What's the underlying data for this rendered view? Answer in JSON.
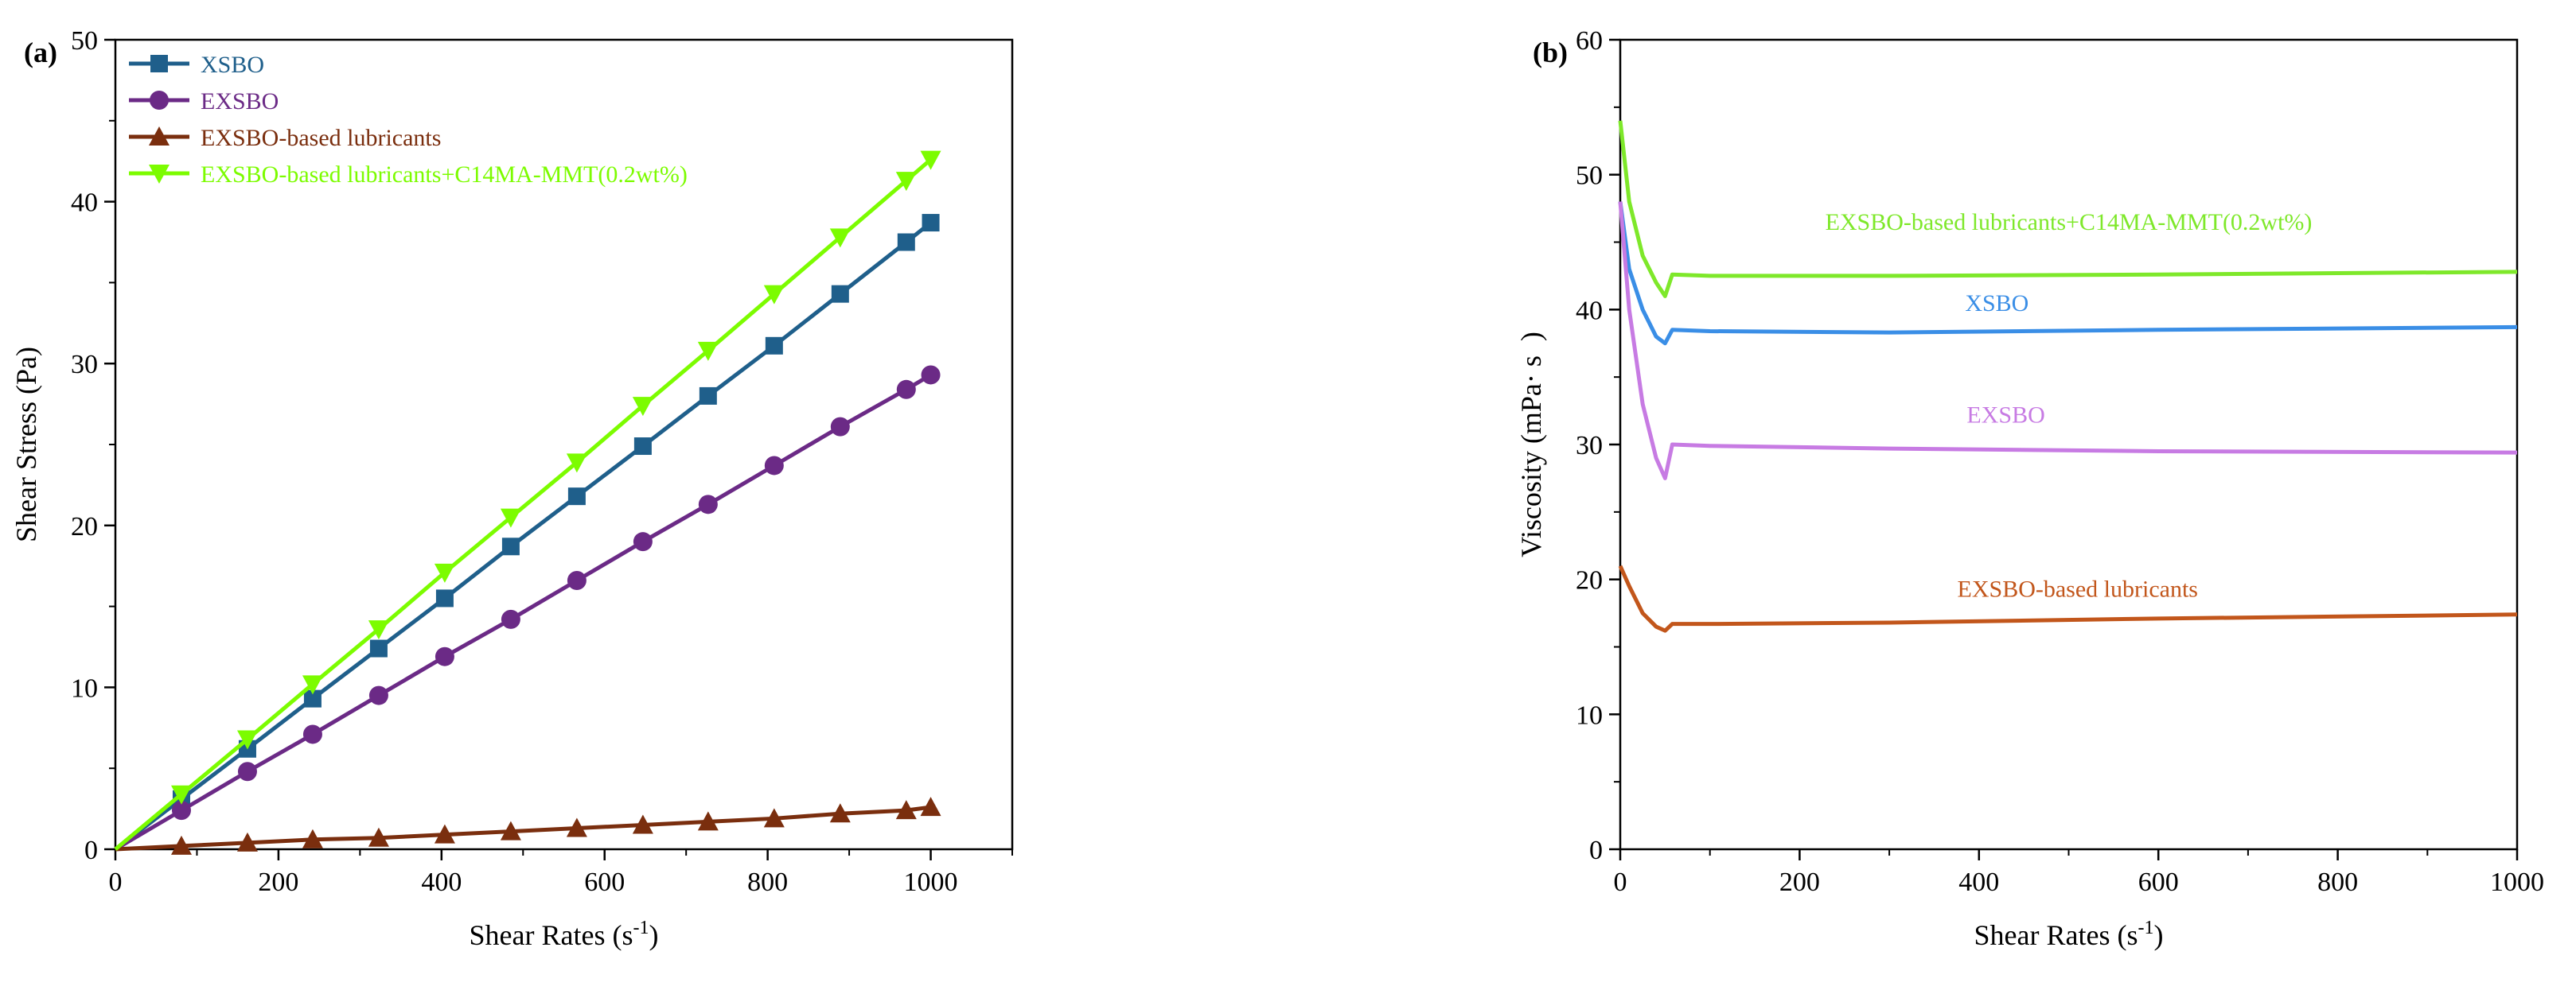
{
  "chart_data": [
    {
      "panel_label": "(a)",
      "type": "line",
      "xlabel": "Shear Rates (s",
      "xlabel_sup": "-1",
      "xlabel_close": ")",
      "ylabel": "Shear Stress (Pa)",
      "xlim": [
        0,
        1100
      ],
      "ylim": [
        0,
        50
      ],
      "xticks": [
        0,
        200,
        400,
        600,
        800,
        1000
      ],
      "yticks": [
        0,
        10,
        20,
        30,
        40,
        50
      ],
      "x": [
        0,
        81,
        162,
        242,
        323,
        404,
        485,
        566,
        647,
        727,
        808,
        889,
        970,
        1000
      ],
      "legend_position": "top-left",
      "series": [
        {
          "name": "XSBO",
          "color": "#1f5f8b",
          "marker": "square",
          "values": [
            0,
            3.1,
            6.2,
            9.3,
            12.4,
            15.5,
            18.7,
            21.8,
            24.9,
            28.0,
            31.1,
            34.3,
            37.5,
            38.7
          ]
        },
        {
          "name": "EXSBO",
          "color": "#6b2a86",
          "marker": "circle",
          "values": [
            0,
            2.4,
            4.8,
            7.1,
            9.5,
            11.9,
            14.2,
            16.6,
            19.0,
            21.3,
            23.7,
            26.1,
            28.4,
            29.3
          ]
        },
        {
          "name": "EXSBO-based lubricants",
          "color": "#7a2e0e",
          "marker": "triangle-up",
          "values": [
            0,
            0.2,
            0.4,
            0.6,
            0.7,
            0.9,
            1.1,
            1.3,
            1.5,
            1.7,
            1.9,
            2.2,
            2.4,
            2.6
          ]
        },
        {
          "name": "EXSBO-based lubricants+C14MA-MMT(0.2wt%)",
          "color": "#7cfc00",
          "marker": "triangle-down",
          "values": [
            0,
            3.4,
            6.8,
            10.2,
            13.6,
            17.1,
            20.5,
            23.9,
            27.4,
            30.8,
            34.3,
            37.8,
            41.3,
            42.6
          ]
        }
      ]
    },
    {
      "panel_label": "(b)",
      "type": "line",
      "xlabel": "Shear Rates (s",
      "xlabel_sup": "-1",
      "xlabel_close": ")",
      "ylabel": "Viscosity (mPa· s  )",
      "xlim": [
        0,
        1000
      ],
      "ylim": [
        0,
        60
      ],
      "xticks": [
        0,
        200,
        400,
        600,
        800,
        1000
      ],
      "yticks": [
        0,
        10,
        20,
        30,
        40,
        50,
        60
      ],
      "series": [
        {
          "name": "EXSBO-based lubricants+C14MA-MMT(0.2wt%)",
          "color": "#7ee82a",
          "x": [
            0,
            10,
            25,
            40,
            50,
            58,
            100,
            300,
            600,
            1000
          ],
          "values": [
            54,
            48,
            44,
            42,
            41,
            42.6,
            42.5,
            42.5,
            42.6,
            42.8
          ]
        },
        {
          "name": "XSBO",
          "color": "#3a8ee6",
          "x": [
            0,
            10,
            25,
            40,
            50,
            58,
            100,
            300,
            600,
            1000
          ],
          "values": [
            48,
            43,
            40,
            38,
            37.5,
            38.5,
            38.4,
            38.3,
            38.5,
            38.7
          ]
        },
        {
          "name": "EXSBO",
          "color": "#c77be3",
          "x": [
            0,
            10,
            25,
            40,
            50,
            58,
            100,
            300,
            600,
            1000
          ],
          "values": [
            48,
            40,
            33,
            29,
            27.5,
            30,
            29.9,
            29.7,
            29.5,
            29.4
          ]
        },
        {
          "name": "EXSBO-based lubricants",
          "color": "#c2561b",
          "x": [
            0,
            10,
            25,
            40,
            50,
            58,
            100,
            300,
            600,
            1000
          ],
          "values": [
            21,
            19.5,
            17.5,
            16.5,
            16.2,
            16.7,
            16.7,
            16.8,
            17.1,
            17.4
          ]
        }
      ],
      "annotations": [
        {
          "text": "EXSBO-based lubricants+C14MA-MMT(0.2wt%)",
          "x": 500,
          "y": 46.5,
          "color": "#7ee82a"
        },
        {
          "text": "XSBO",
          "x": 420,
          "y": 40.5,
          "color": "#3a8ee6"
        },
        {
          "text": "EXSBO",
          "x": 430,
          "y": 32.2,
          "color": "#c77be3"
        },
        {
          "text": "EXSBO-based lubricants",
          "x": 510,
          "y": 19.3,
          "color": "#c2561b"
        }
      ]
    }
  ]
}
